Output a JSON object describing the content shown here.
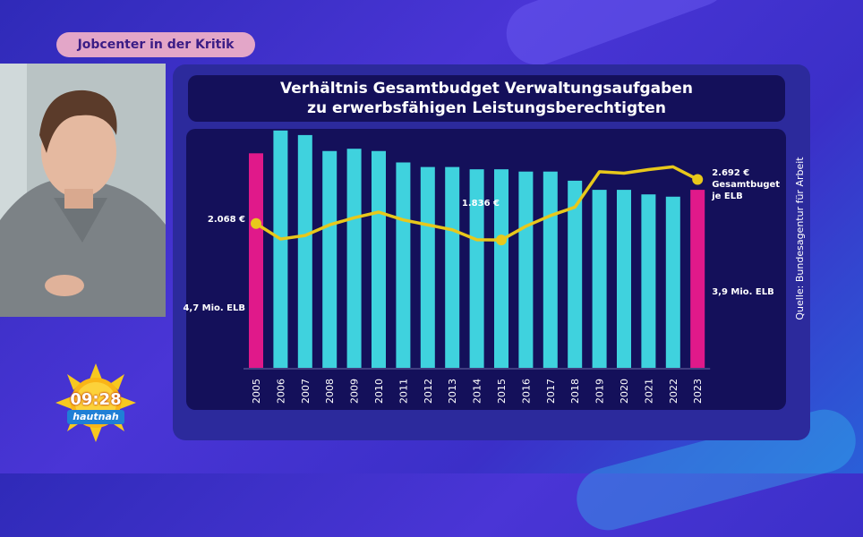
{
  "topic": "Jobcenter in der Kritik",
  "clock": {
    "time": "09:28",
    "brand": "hautnah"
  },
  "source": "Quelle: Bundesagentur für Arbeit",
  "colors": {
    "bar": "#3fd2de",
    "highlight_bar": "#e0198a",
    "line": "#e8c81b"
  },
  "chart_data": {
    "type": "bar",
    "title": "Verhältnis Gesamtbudget Verwaltungsaufgaben",
    "subtitle": "zu erwerbsfähigen Leistungsberechtigten",
    "categories": [
      "2005",
      "2006",
      "2007",
      "2008",
      "2009",
      "2010",
      "2011",
      "2012",
      "2013",
      "2014",
      "2015",
      "2016",
      "2017",
      "2018",
      "2019",
      "2020",
      "2021",
      "2022",
      "2023"
    ],
    "bars": {
      "values": [
        4.7,
        5.2,
        5.1,
        4.75,
        4.8,
        4.75,
        4.5,
        4.4,
        4.4,
        4.35,
        4.35,
        4.3,
        4.3,
        4.1,
        3.9,
        3.9,
        3.8,
        3.75,
        3.9
      ],
      "highlight": [
        true,
        false,
        false,
        false,
        false,
        false,
        false,
        false,
        false,
        false,
        false,
        false,
        false,
        false,
        false,
        false,
        false,
        false,
        true
      ],
      "unit": "Mio. ELB"
    },
    "line": {
      "values": [
        2068,
        1850,
        1900,
        2050,
        2150,
        2230,
        2120,
        2050,
        1980,
        1840,
        1836,
        2030,
        2180,
        2300,
        2800,
        2780,
        2830,
        2870,
        2692
      ],
      "unit": "€"
    },
    "labels": {
      "first_line": "2.068 €",
      "mid_line": "1.836 €",
      "last_line_1": "2.692 €",
      "last_line_2": "Gesamtbuget",
      "last_line_3": "je ELB",
      "first_bar": "4,7 Mio. ELB",
      "last_bar": "3,9 Mio. ELB"
    },
    "grid": false
  }
}
